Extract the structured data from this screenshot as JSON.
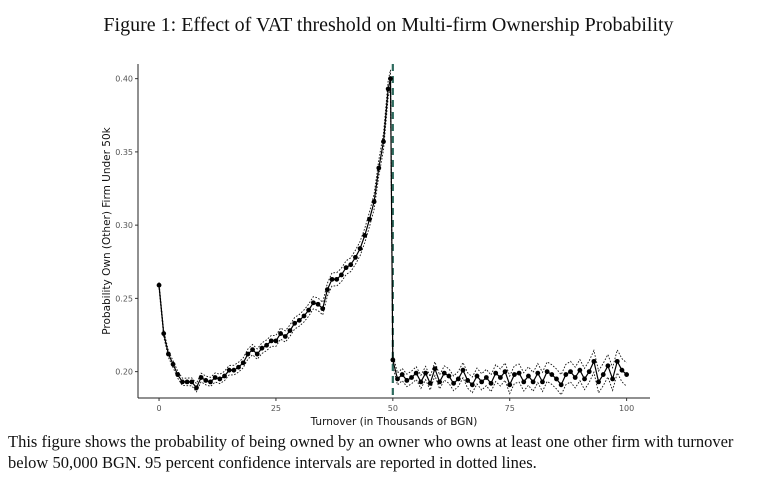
{
  "figure": {
    "title": "Figure 1: Effect of VAT threshold on Multi-firm Ownership Probability",
    "caption": "This figure shows the probability of being owned by an owner who owns at least one other firm with turnover below 50,000 BGN. 95 percent confidence intervals are reported in dotted lines."
  },
  "chart_data": {
    "type": "line",
    "title": "",
    "xlabel": "Turnover (in Thousands of BGN)",
    "ylabel": "Probability Own (Other) Firm Under 50k",
    "xlim": [
      -4.5,
      105
    ],
    "ylim": [
      0.182,
      0.41
    ],
    "xticks": [
      0,
      25,
      50,
      75,
      100
    ],
    "xtick_labels": [
      "0",
      "25",
      "50",
      "75",
      "100"
    ],
    "yticks": [
      0.2,
      0.25,
      0.3,
      0.35,
      0.4
    ],
    "ytick_labels": [
      "0.20",
      "0.25",
      "0.30",
      "0.35",
      "0.40"
    ],
    "grid": false,
    "legend": "none",
    "threshold_line": {
      "x": 50,
      "style": "dashed",
      "color": "#2e6b5e"
    },
    "series": [
      {
        "points": [
          [
            0,
            0.259
          ],
          [
            1,
            0.226
          ],
          [
            2,
            0.212
          ],
          [
            3,
            0.205
          ],
          [
            4,
            0.198
          ],
          [
            5,
            0.193
          ],
          [
            6,
            0.193
          ],
          [
            7,
            0.193
          ],
          [
            8,
            0.189
          ],
          [
            9,
            0.196
          ],
          [
            10,
            0.194
          ],
          [
            11,
            0.193
          ],
          [
            12,
            0.196
          ],
          [
            13,
            0.195
          ],
          [
            14,
            0.197
          ],
          [
            15,
            0.201
          ],
          [
            16,
            0.201
          ],
          [
            17,
            0.203
          ],
          [
            18,
            0.206
          ],
          [
            19,
            0.212
          ],
          [
            20,
            0.215
          ],
          [
            21,
            0.212
          ],
          [
            22,
            0.216
          ],
          [
            23,
            0.218
          ],
          [
            24,
            0.221
          ],
          [
            25,
            0.221
          ],
          [
            26,
            0.226
          ],
          [
            27,
            0.224
          ],
          [
            28,
            0.228
          ],
          [
            29,
            0.233
          ],
          [
            30,
            0.235
          ],
          [
            31,
            0.238
          ],
          [
            32,
            0.242
          ],
          [
            33,
            0.247
          ],
          [
            34,
            0.246
          ],
          [
            35,
            0.243
          ],
          [
            36,
            0.256
          ],
          [
            37,
            0.263
          ],
          [
            38,
            0.263
          ],
          [
            39,
            0.266
          ],
          [
            40,
            0.271
          ],
          [
            41,
            0.273
          ],
          [
            42,
            0.278
          ],
          [
            43,
            0.284
          ],
          [
            44,
            0.293
          ],
          [
            45,
            0.304
          ],
          [
            46,
            0.316
          ],
          [
            47,
            0.339
          ],
          [
            48,
            0.357
          ],
          [
            49,
            0.393
          ],
          [
            49.5,
            0.4
          ],
          [
            50,
            0.208
          ],
          [
            51,
            0.195
          ],
          [
            52,
            0.198
          ],
          [
            53,
            0.194
          ],
          [
            54,
            0.196
          ],
          [
            55,
            0.199
          ],
          [
            56,
            0.193
          ],
          [
            57,
            0.199
          ],
          [
            58,
            0.192
          ],
          [
            59,
            0.202
          ],
          [
            60,
            0.193
          ],
          [
            61,
            0.199
          ],
          [
            62,
            0.197
          ],
          [
            63,
            0.192
          ],
          [
            64,
            0.195
          ],
          [
            65,
            0.201
          ],
          [
            66,
            0.194
          ],
          [
            67,
            0.191
          ],
          [
            68,
            0.197
          ],
          [
            69,
            0.193
          ],
          [
            70,
            0.196
          ],
          [
            71,
            0.192
          ],
          [
            72,
            0.199
          ],
          [
            73,
            0.196
          ],
          [
            74,
            0.2
          ],
          [
            75,
            0.191
          ],
          [
            76,
            0.198
          ],
          [
            77,
            0.199
          ],
          [
            78,
            0.193
          ],
          [
            79,
            0.197
          ],
          [
            80,
            0.193
          ],
          [
            81,
            0.199
          ],
          [
            82,
            0.193
          ],
          [
            83,
            0.2
          ],
          [
            84,
            0.198
          ],
          [
            85,
            0.195
          ],
          [
            86,
            0.191
          ],
          [
            87,
            0.198
          ],
          [
            88,
            0.2
          ],
          [
            89,
            0.196
          ],
          [
            90,
            0.201
          ],
          [
            91,
            0.195
          ],
          [
            92,
            0.2
          ],
          [
            93,
            0.207
          ],
          [
            94,
            0.193
          ],
          [
            95,
            0.198
          ],
          [
            96,
            0.204
          ],
          [
            97,
            0.195
          ],
          [
            98,
            0.207
          ],
          [
            99,
            0.201
          ],
          [
            100,
            0.198
          ]
        ],
        "ci_halfwidth": [
          [
            0,
            0.002
          ],
          [
            10,
            0.003
          ],
          [
            30,
            0.004
          ],
          [
            45,
            0.005
          ],
          [
            49.5,
            0.006
          ],
          [
            50,
            0.004
          ],
          [
            100,
            0.008
          ]
        ]
      }
    ]
  }
}
